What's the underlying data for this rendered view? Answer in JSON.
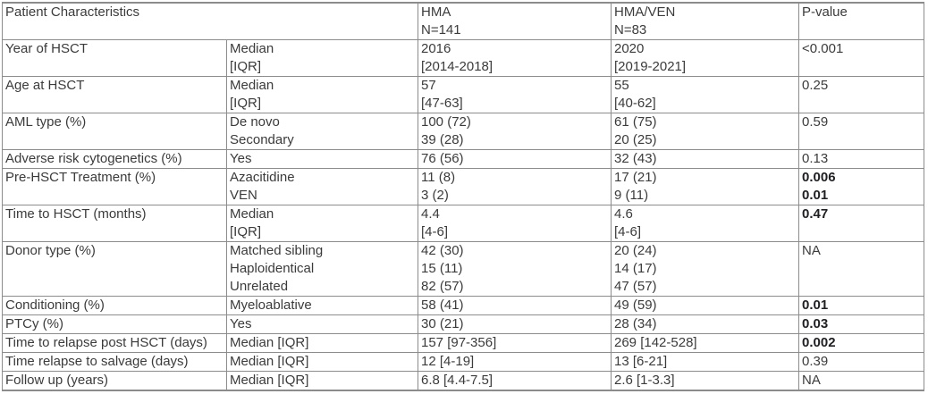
{
  "table": {
    "header": {
      "title": "Patient Characteristics",
      "hma": "HMA\nN=141",
      "hma_ven": "HMA/VEN\nN=83",
      "p": "P-value"
    },
    "rows": [
      {
        "label": "Year of HSCT",
        "sub": "Median\n[IQR]",
        "hma": "2016\n[2014-2018]",
        "hma_ven": "2020\n[2019-2021]",
        "p": "<0.001",
        "p_bold": false
      },
      {
        "label": "Age at HSCT",
        "sub": "Median\n[IQR]",
        "hma": "57\n[47-63]",
        "hma_ven": "55\n[40-62]",
        "p": "0.25",
        "p_bold": false
      },
      {
        "label": "AML type (%)",
        "sub": "De novo\nSecondary",
        "hma": "100 (72)\n39 (28)",
        "hma_ven": "61 (75)\n20 (25)",
        "p": "0.59",
        "p_bold": false
      },
      {
        "label": "Adverse risk cytogenetics (%)",
        "sub": "Yes",
        "hma": "76 (56)",
        "hma_ven": "32 (43)",
        "p": "0.13",
        "p_bold": false
      },
      {
        "label": "Pre-HSCT Treatment (%)",
        "sub": "Azacitidine\nVEN",
        "hma": "11 (8)\n3 (2)",
        "hma_ven": "17 (21)\n9 (11)",
        "p": "0.006\n0.01",
        "p_bold": true
      },
      {
        "label": "Time to HSCT (months)",
        "sub": "Median\n[IQR]",
        "hma": "4.4\n[4-6]",
        "hma_ven": "4.6\n[4-6]",
        "p": "0.47",
        "p_bold": true
      },
      {
        "label": "Donor type (%)",
        "sub": "Matched sibling\nHaploidentical\nUnrelated",
        "hma": "42 (30)\n15 (11)\n82 (57)",
        "hma_ven": "20 (24)\n14 (17)\n47 (57)",
        "p": "NA",
        "p_bold": false
      },
      {
        "label": "Conditioning (%)",
        "sub": "Myeloablative",
        "hma": "58 (41)",
        "hma_ven": "49 (59)",
        "p": "0.01",
        "p_bold": true
      },
      {
        "label": "PTCy (%)",
        "sub": "Yes",
        "hma": "30 (21)",
        "hma_ven": "28 (34)",
        "p": "0.03",
        "p_bold": true
      },
      {
        "label": "Time to relapse post HSCT (days)",
        "sub": "Median [IQR]",
        "hma": "157 [97-356]",
        "hma_ven": "269 [142-528]",
        "p": "0.002",
        "p_bold": true
      },
      {
        "label": "Time relapse to salvage (days)",
        "sub": "Median [IQR]",
        "hma": "12 [4-19]",
        "hma_ven": "13 [6-21]",
        "p": "0.39",
        "p_bold": false
      },
      {
        "label": "Follow up (years)",
        "sub": "Median [IQR]",
        "hma": "6.8 [4.4-7.5]",
        "hma_ven": "2.6 [1-3.3]",
        "p": "NA",
        "p_bold": false
      }
    ],
    "colors": {
      "border": "#8c8c8c",
      "text": "#3b3b3b",
      "bold_text": "#1f1f23"
    }
  }
}
